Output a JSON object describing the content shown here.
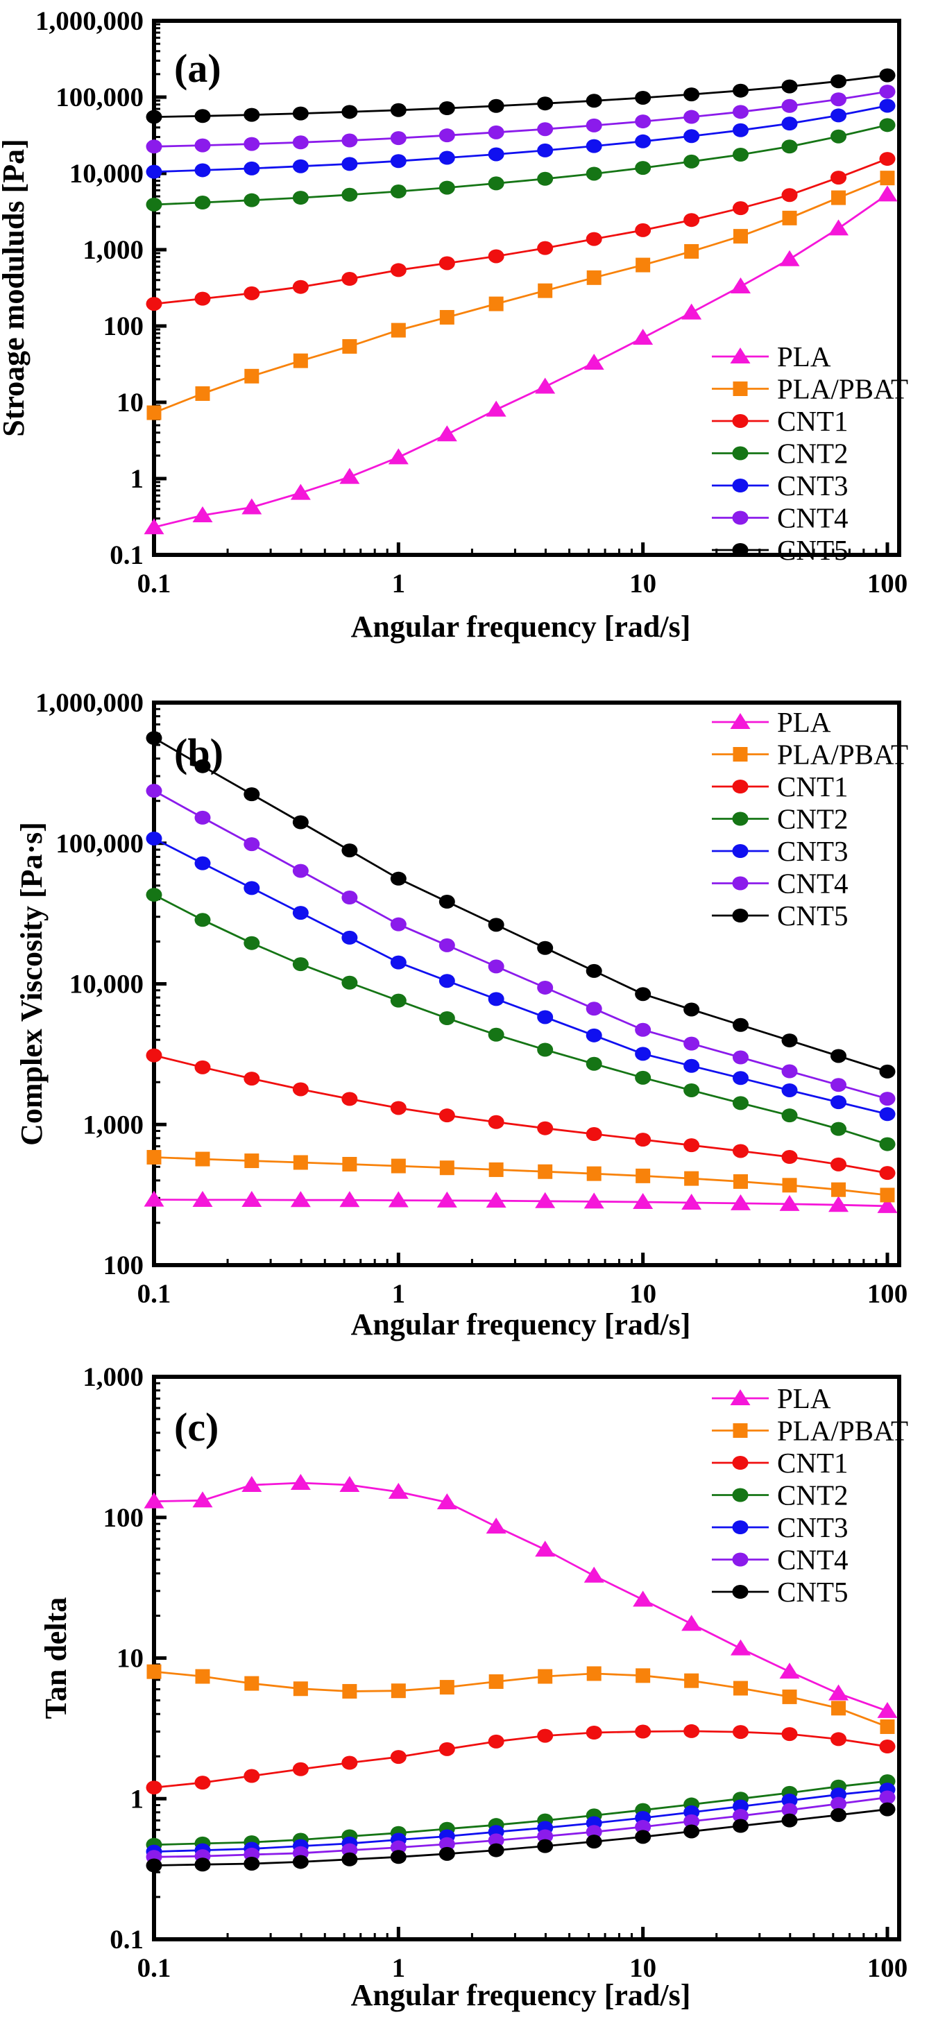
{
  "figure": {
    "background": "#ffffff",
    "frame_color": "#000000",
    "panel_order": [
      "a",
      "b",
      "c"
    ]
  },
  "chart_data": [
    {
      "id": "a",
      "type": "line",
      "panel_label": "(a)",
      "xlabel": "Angular frequency [rad/s]",
      "ylabel": "Stroage moduluds [Pa]",
      "xscale": "log",
      "yscale": "log",
      "xlim": [
        0.1,
        100
      ],
      "ylim": [
        0.1,
        1000000
      ],
      "grid": false,
      "x_tick_labels": [
        "0.1",
        "1",
        "10",
        "100"
      ],
      "y_tick_labels": [
        "0.1",
        "1",
        "10",
        "100",
        "1,000",
        "10,000",
        "100,000",
        "1,000,000"
      ],
      "legend_position": "right-middle",
      "x": [
        0.1,
        0.158,
        0.251,
        0.398,
        0.631,
        1,
        1.58,
        2.51,
        3.98,
        6.31,
        10,
        15.8,
        25.1,
        39.8,
        63.1,
        100
      ],
      "series": [
        {
          "name": "PLA",
          "color": "#F516D9",
          "marker": "triangle",
          "values": [
            0.23,
            0.33,
            0.42,
            0.65,
            1.05,
            1.9,
            3.8,
            8,
            16,
            33,
            70,
            150,
            330,
            750,
            1900,
            5300
          ]
        },
        {
          "name": "PLA/PBAT",
          "color": "#F8820A",
          "marker": "square",
          "values": [
            7.3,
            13,
            22,
            35,
            54,
            88,
            130,
            195,
            290,
            430,
            630,
            950,
            1500,
            2600,
            4800,
            8700
          ]
        },
        {
          "name": "CNT1",
          "color": "#F00F0F",
          "marker": "circle",
          "values": [
            195,
            228,
            268,
            325,
            415,
            540,
            665,
            820,
            1050,
            1380,
            1800,
            2450,
            3500,
            5200,
            8800,
            15500
          ]
        },
        {
          "name": "CNT2",
          "color": "#157515",
          "marker": "circle",
          "values": [
            3900,
            4150,
            4450,
            4800,
            5250,
            5800,
            6500,
            7400,
            8500,
            9900,
            11800,
            14300,
            17600,
            22500,
            30500,
            43000
          ]
        },
        {
          "name": "CNT3",
          "color": "#1010F0",
          "marker": "circle",
          "values": [
            10500,
            11000,
            11600,
            12400,
            13300,
            14500,
            16000,
            17800,
            20000,
            22800,
            26300,
            30800,
            36800,
            45000,
            57500,
            77000
          ]
        },
        {
          "name": "CNT4",
          "color": "#8B1BEB",
          "marker": "circle",
          "values": [
            22500,
            23300,
            24300,
            25500,
            27000,
            29000,
            31500,
            34500,
            38000,
            42500,
            48000,
            55000,
            64000,
            76500,
            93500,
            118000
          ]
        },
        {
          "name": "CNT5",
          "color": "#000000",
          "marker": "circle",
          "values": [
            55000,
            56500,
            58500,
            61000,
            64000,
            67500,
            71500,
            76500,
            82500,
            89500,
            98000,
            108500,
            121500,
            138000,
            161000,
            193000
          ]
        }
      ]
    },
    {
      "id": "b",
      "type": "line",
      "panel_label": "(b)",
      "xlabel": "Angular frequency [rad/s]",
      "ylabel": "Complex Viscosity [Pa·s]",
      "xscale": "log",
      "yscale": "log",
      "xlim": [
        0.1,
        100
      ],
      "ylim": [
        100,
        1000000
      ],
      "grid": false,
      "x_tick_labels": [
        "0.1",
        "1",
        "10",
        "100"
      ],
      "y_tick_labels": [
        "100",
        "1,000",
        "10,000",
        "100,000",
        "1,000,000"
      ],
      "legend_position": "top-right",
      "x": [
        0.1,
        0.158,
        0.251,
        0.398,
        0.631,
        1,
        1.58,
        2.51,
        3.98,
        6.31,
        10,
        15.8,
        25.1,
        39.8,
        63.1,
        100
      ],
      "series": [
        {
          "name": "PLA",
          "color": "#F516D9",
          "marker": "triangle",
          "values": [
            292,
            291,
            291,
            290,
            290,
            289,
            288,
            287,
            285,
            283,
            281,
            278,
            275,
            272,
            268,
            263
          ]
        },
        {
          "name": "PLA/PBAT",
          "color": "#F8820A",
          "marker": "square",
          "values": [
            585,
            568,
            552,
            537,
            522,
            507,
            492,
            477,
            462,
            447,
            431,
            413,
            393,
            370,
            344,
            315
          ]
        },
        {
          "name": "CNT1",
          "color": "#F00F0F",
          "marker": "circle",
          "values": [
            3100,
            2550,
            2120,
            1780,
            1520,
            1310,
            1160,
            1040,
            940,
            855,
            780,
            712,
            648,
            588,
            520,
            452
          ]
        },
        {
          "name": "CNT2",
          "color": "#157515",
          "marker": "circle",
          "values": [
            43000,
            28500,
            19500,
            13800,
            10200,
            7600,
            5700,
            4350,
            3400,
            2700,
            2150,
            1750,
            1420,
            1160,
            930,
            725
          ]
        },
        {
          "name": "CNT3",
          "color": "#1010F0",
          "marker": "circle",
          "values": [
            108000,
            72000,
            48000,
            32000,
            21300,
            14200,
            10500,
            7800,
            5800,
            4300,
            3180,
            2610,
            2140,
            1750,
            1440,
            1185
          ]
        },
        {
          "name": "CNT4",
          "color": "#8B1BEB",
          "marker": "circle",
          "values": [
            236000,
            152000,
            98500,
            63600,
            41100,
            26500,
            18800,
            13300,
            9400,
            6660,
            4710,
            3760,
            3000,
            2390,
            1910,
            1525
          ]
        },
        {
          "name": "CNT5",
          "color": "#000000",
          "marker": "circle",
          "values": [
            560000,
            353000,
            223000,
            141000,
            88900,
            56000,
            38400,
            26300,
            18000,
            12350,
            8460,
            6570,
            5100,
            3960,
            3070,
            2380
          ]
        }
      ]
    },
    {
      "id": "c",
      "type": "line",
      "panel_label": "(c)",
      "xlabel": "Angular frequency [rad/s]",
      "ylabel": "Tan delta",
      "xscale": "log",
      "yscale": "log",
      "xlim": [
        0.1,
        100
      ],
      "ylim": [
        0.1,
        1000
      ],
      "grid": false,
      "x_tick_labels": [
        "0.1",
        "1",
        "10",
        "100"
      ],
      "y_tick_labels": [
        "0.1",
        "1",
        "10",
        "100",
        "1,000"
      ],
      "legend_position": "top-right",
      "x": [
        0.1,
        0.158,
        0.251,
        0.398,
        0.631,
        1,
        1.58,
        2.51,
        3.98,
        6.31,
        10,
        15.8,
        25.1,
        39.8,
        63.1,
        100
      ],
      "series": [
        {
          "name": "PLA",
          "color": "#F516D9",
          "marker": "triangle",
          "values": [
            130,
            132,
            170,
            176,
            170,
            152,
            128,
            86,
            59,
            38.5,
            26,
            17.5,
            11.7,
            8.0,
            5.6,
            4.2
          ]
        },
        {
          "name": "PLA/PBAT",
          "color": "#F8820A",
          "marker": "square",
          "values": [
            8.0,
            7.4,
            6.6,
            6.05,
            5.8,
            5.85,
            6.2,
            6.8,
            7.4,
            7.75,
            7.5,
            6.9,
            6.1,
            5.3,
            4.4,
            3.25
          ]
        },
        {
          "name": "CNT1",
          "color": "#F00F0F",
          "marker": "circle",
          "values": [
            1.2,
            1.3,
            1.45,
            1.62,
            1.8,
            1.98,
            2.25,
            2.55,
            2.8,
            2.95,
            3.0,
            3.02,
            2.98,
            2.88,
            2.65,
            2.35
          ]
        },
        {
          "name": "CNT2",
          "color": "#157515",
          "marker": "circle",
          "values": [
            0.47,
            0.48,
            0.49,
            0.51,
            0.54,
            0.57,
            0.61,
            0.65,
            0.7,
            0.76,
            0.83,
            0.91,
            1.0,
            1.1,
            1.22,
            1.33
          ]
        },
        {
          "name": "CNT3",
          "color": "#1010F0",
          "marker": "circle",
          "values": [
            0.42,
            0.43,
            0.44,
            0.46,
            0.48,
            0.51,
            0.54,
            0.58,
            0.62,
            0.67,
            0.73,
            0.8,
            0.88,
            0.97,
            1.07,
            1.16
          ]
        },
        {
          "name": "CNT4",
          "color": "#8B1BEB",
          "marker": "circle",
          "values": [
            0.385,
            0.39,
            0.4,
            0.41,
            0.43,
            0.45,
            0.475,
            0.505,
            0.54,
            0.58,
            0.63,
            0.69,
            0.755,
            0.83,
            0.92,
            1.02
          ]
        },
        {
          "name": "CNT5",
          "color": "#000000",
          "marker": "circle",
          "values": [
            0.335,
            0.34,
            0.345,
            0.355,
            0.37,
            0.385,
            0.405,
            0.43,
            0.46,
            0.495,
            0.535,
            0.585,
            0.64,
            0.7,
            0.765,
            0.84
          ]
        }
      ]
    }
  ]
}
